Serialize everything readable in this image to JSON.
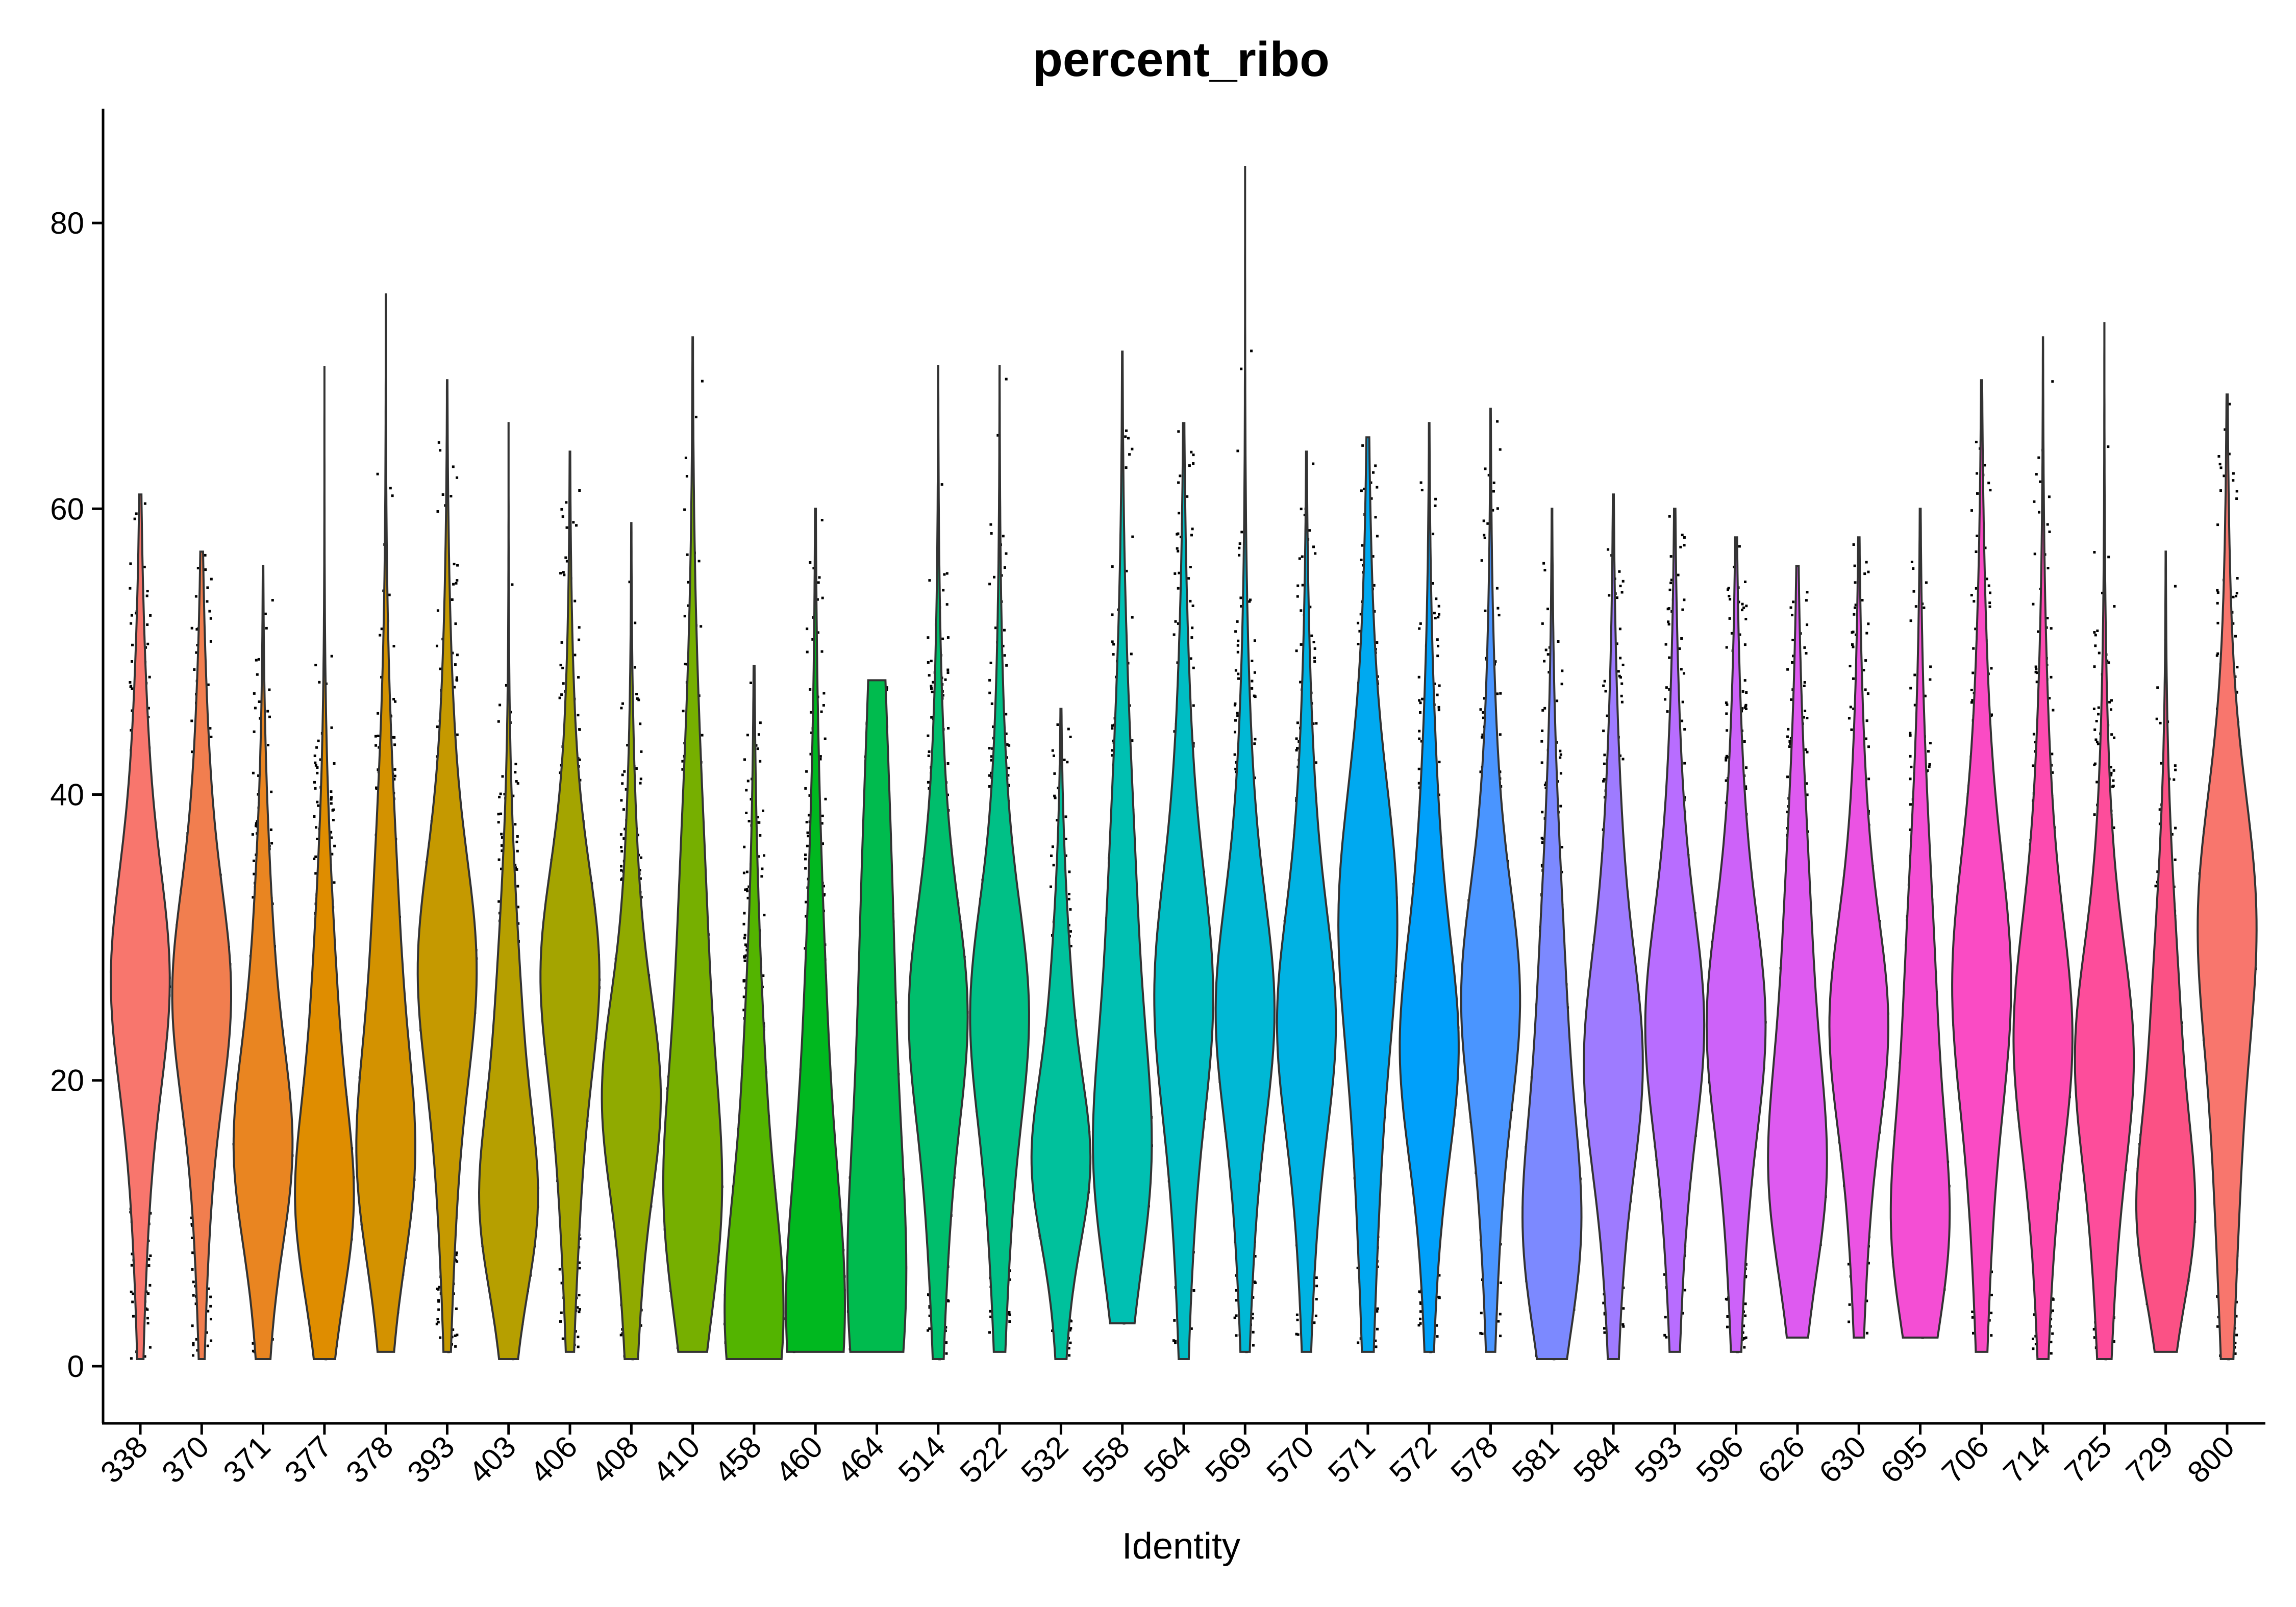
{
  "chart_data": {
    "type": "violin",
    "title": "percent_ribo",
    "xlabel": "Identity",
    "ylabel": "",
    "ylim": [
      -4,
      88
    ],
    "yticks": [
      0,
      20,
      40,
      60,
      80
    ],
    "grid": false,
    "legend": "none",
    "point_color": "#000000",
    "groups": [
      {
        "name": "338",
        "color": "#F8766D",
        "median": 27,
        "q1": 17,
        "q3": 37,
        "min": 0.5,
        "max": 61,
        "mode": 27
      },
      {
        "name": "370",
        "color": "#F17E4F",
        "median": 26,
        "q1": 16,
        "q3": 35,
        "min": 0.5,
        "max": 57,
        "mode": 26
      },
      {
        "name": "371",
        "color": "#E98521",
        "median": 18,
        "q1": 11,
        "q3": 29,
        "min": 0.5,
        "max": 56,
        "mode": 15
      },
      {
        "name": "377",
        "color": "#DF8D00",
        "median": 17,
        "q1": 10,
        "q3": 28,
        "min": 0.5,
        "max": 70,
        "mode": 11
      },
      {
        "name": "378",
        "color": "#D39200",
        "median": 22,
        "q1": 13,
        "q3": 33,
        "min": 1,
        "max": 75,
        "mode": 14
      },
      {
        "name": "393",
        "color": "#C59900",
        "median": 26,
        "q1": 15,
        "q3": 35,
        "min": 1,
        "max": 69,
        "mode": 28
      },
      {
        "name": "403",
        "color": "#B69F00",
        "median": 17,
        "q1": 10,
        "q3": 27,
        "min": 0.5,
        "max": 66,
        "mode": 11
      },
      {
        "name": "406",
        "color": "#A4A400",
        "median": 24,
        "q1": 14,
        "q3": 33,
        "min": 1,
        "max": 64,
        "mode": 28
      },
      {
        "name": "408",
        "color": "#90AA00",
        "median": 18,
        "q1": 10,
        "q3": 28,
        "min": 0.5,
        "max": 59,
        "mode": 19
      },
      {
        "name": "410",
        "color": "#76AF00",
        "median": 22,
        "q1": 12,
        "q3": 35,
        "min": 1,
        "max": 72,
        "mode": 11
      },
      {
        "name": "458",
        "color": "#53B400",
        "median": 8,
        "q1": 3,
        "q3": 24,
        "min": 0.5,
        "max": 49,
        "mode": 3
      },
      {
        "name": "460",
        "color": "#00B81F",
        "median": 10,
        "q1": 3,
        "q3": 28,
        "min": 1,
        "max": 60,
        "mode": 3
      },
      {
        "name": "464",
        "color": "#00BB4E",
        "median": 22,
        "q1": 6,
        "q3": 35,
        "min": 1,
        "max": 48,
        "mode": 4
      },
      {
        "name": "514",
        "color": "#00BE6C",
        "median": 22,
        "q1": 12,
        "q3": 32,
        "min": 0.5,
        "max": 70,
        "mode": 25
      },
      {
        "name": "522",
        "color": "#00C086",
        "median": 22,
        "q1": 12,
        "q3": 32,
        "min": 1,
        "max": 70,
        "mode": 25
      },
      {
        "name": "532",
        "color": "#00C19C",
        "median": 17,
        "q1": 11,
        "q3": 26,
        "min": 0.5,
        "max": 46,
        "mode": 14
      },
      {
        "name": "558",
        "color": "#00C0B2",
        "median": 24,
        "q1": 14,
        "q3": 36,
        "min": 3,
        "max": 71,
        "mode": 14
      },
      {
        "name": "564",
        "color": "#00BDC4",
        "median": 25,
        "q1": 14,
        "q3": 36,
        "min": 0.5,
        "max": 66,
        "mode": 26
      },
      {
        "name": "569",
        "color": "#00B8D5",
        "median": 24,
        "q1": 13,
        "q3": 33,
        "min": 1,
        "max": 84,
        "mode": 25
      },
      {
        "name": "570",
        "color": "#00B2E3",
        "median": 24,
        "q1": 13,
        "q3": 33,
        "min": 1,
        "max": 64,
        "mode": 24
      },
      {
        "name": "571",
        "color": "#00A9F0",
        "median": 26,
        "q1": 13,
        "q3": 37,
        "min": 1,
        "max": 65,
        "mode": 32
      },
      {
        "name": "572",
        "color": "#00A0FA",
        "median": 24,
        "q1": 13,
        "q3": 33,
        "min": 1,
        "max": 66,
        "mode": 22
      },
      {
        "name": "578",
        "color": "#4A95FF",
        "median": 24,
        "q1": 13,
        "q3": 33,
        "min": 1,
        "max": 67,
        "mode": 26
      },
      {
        "name": "581",
        "color": "#7C89FF",
        "median": 18,
        "q1": 9,
        "q3": 29,
        "min": 0.5,
        "max": 60,
        "mode": 9
      },
      {
        "name": "584",
        "color": "#9E7BFF",
        "median": 22,
        "q1": 12,
        "q3": 32,
        "min": 0.5,
        "max": 61,
        "mode": 21
      },
      {
        "name": "593",
        "color": "#B86DFF",
        "median": 23,
        "q1": 13,
        "q3": 33,
        "min": 1,
        "max": 60,
        "mode": 24
      },
      {
        "name": "596",
        "color": "#CD62F9",
        "median": 23,
        "q1": 13,
        "q3": 33,
        "min": 1,
        "max": 58,
        "mode": 24
      },
      {
        "name": "626",
        "color": "#DE5AF0",
        "median": 22,
        "q1": 12,
        "q3": 32,
        "min": 2,
        "max": 56,
        "mode": 13
      },
      {
        "name": "630",
        "color": "#EB53E3",
        "median": 23,
        "q1": 13,
        "q3": 32,
        "min": 2,
        "max": 58,
        "mode": 24
      },
      {
        "name": "695",
        "color": "#F44ED4",
        "median": 20,
        "q1": 10,
        "q3": 30,
        "min": 2,
        "max": 60,
        "mode": 9
      },
      {
        "name": "706",
        "color": "#FA4BC4",
        "median": 25,
        "q1": 12,
        "q3": 35,
        "min": 1,
        "max": 69,
        "mode": 27
      },
      {
        "name": "714",
        "color": "#FD4BB0",
        "median": 23,
        "q1": 13,
        "q3": 34,
        "min": 0.5,
        "max": 72,
        "mode": 23
      },
      {
        "name": "725",
        "color": "#FD4D9B",
        "median": 19,
        "q1": 9,
        "q3": 29,
        "min": 0.5,
        "max": 73,
        "mode": 22
      },
      {
        "name": "729",
        "color": "#FB5185",
        "median": 18,
        "q1": 10,
        "q3": 27,
        "min": 1,
        "max": 57,
        "mode": 10
      },
      {
        "name": "800",
        "color": "#F8766D",
        "median": 24,
        "q1": 11,
        "q3": 34,
        "min": 0.5,
        "max": 68,
        "mode": 32
      }
    ]
  }
}
